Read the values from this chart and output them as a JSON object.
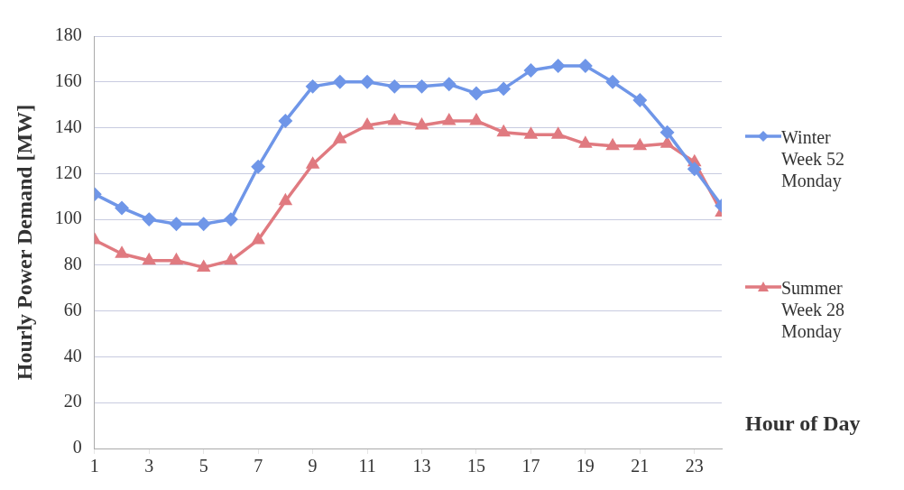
{
  "chart_data": {
    "type": "line",
    "ylabel": "Hourly Power Demand [MW]",
    "xlabel": "Hour of Day",
    "x": [
      1,
      2,
      3,
      4,
      5,
      6,
      7,
      8,
      9,
      10,
      11,
      12,
      13,
      14,
      15,
      16,
      17,
      18,
      19,
      20,
      21,
      22,
      23,
      24
    ],
    "xlim": [
      1,
      24
    ],
    "xticks": [
      1,
      3,
      5,
      7,
      9,
      11,
      13,
      15,
      17,
      19,
      21,
      23
    ],
    "series": [
      {
        "name": "Winter Week 52 Monday",
        "color": "#6f96e8",
        "marker": "diamond",
        "values": [
          111,
          105,
          100,
          98,
          98,
          100,
          123,
          143,
          158,
          160,
          160,
          158,
          158,
          159,
          155,
          157,
          165,
          167,
          167,
          160,
          152,
          138,
          122,
          106
        ]
      },
      {
        "name": "Summer Week 28 Monday",
        "color": "#e07a80",
        "marker": "triangle",
        "values": [
          91,
          85,
          82,
          82,
          79,
          82,
          91,
          108,
          124,
          135,
          141,
          143,
          141,
          143,
          143,
          138,
          137,
          137,
          133,
          132,
          132,
          133,
          125,
          103
        ]
      }
    ],
    "ylim": [
      0,
      180
    ],
    "yticks": [
      0,
      20,
      40,
      60,
      80,
      100,
      120,
      140,
      160,
      180
    ],
    "grid": "y",
    "legend": "right"
  }
}
